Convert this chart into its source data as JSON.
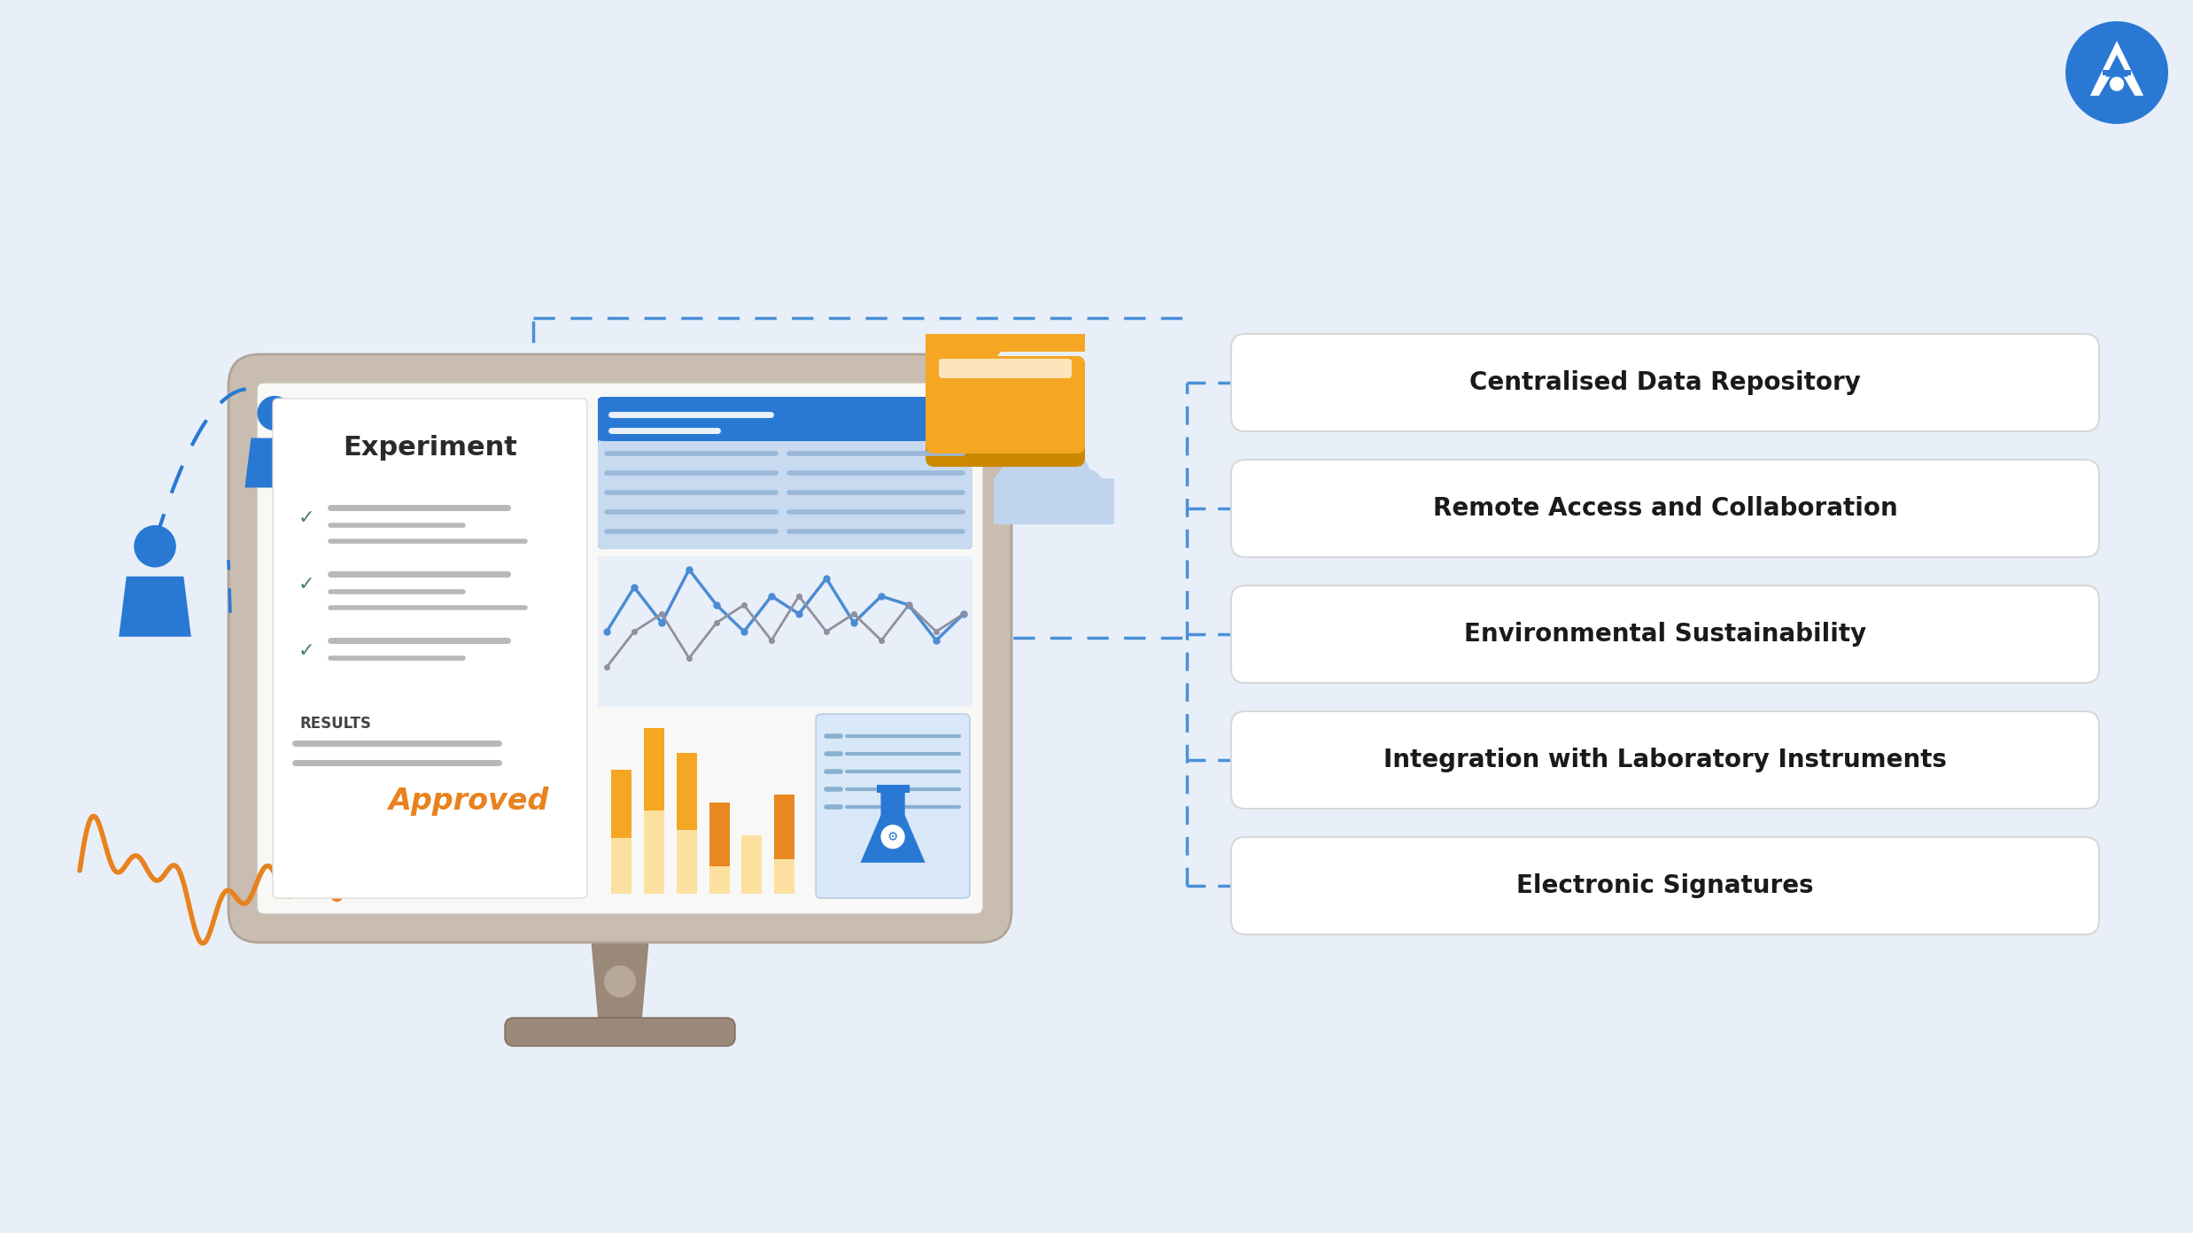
{
  "background_color": "#e8eff8",
  "features": [
    "Centralised Data Repository",
    "Remote Access and Collaboration",
    "Environmental Sustainability",
    "Integration with Laboratory Instruments",
    "Electronic Signatures"
  ],
  "feature_box_color": "#ffffff",
  "feature_text_color": "#1a1a1a",
  "feature_font_size": 20,
  "dashed_line_color": "#4a90d9",
  "monitor_bezel_color": "#c8bdb0",
  "monitor_screen_color": "#f0f0ee",
  "monitor_stand_color": "#9a8878",
  "blue_primary": "#2979d4",
  "blue_header": "#2979d4",
  "blue_table_bg": "#c8daf0",
  "orange_folder": "#f5a623",
  "orange_folder_dark": "#cc8800",
  "orange_signature": "#e8821e",
  "green_check": "#4a8060",
  "gray_lines": "#b8b8b8",
  "gray_dark": "#666666",
  "chart_orange": "#f5a623",
  "chart_peach": "#fce0a0",
  "chart_orange2": "#e88820",
  "logo_blue": "#2979d4",
  "cloud_color": "#c0d4ee",
  "line_chart_blue": "#4a8cd4",
  "line_chart_gray": "#9090a0"
}
